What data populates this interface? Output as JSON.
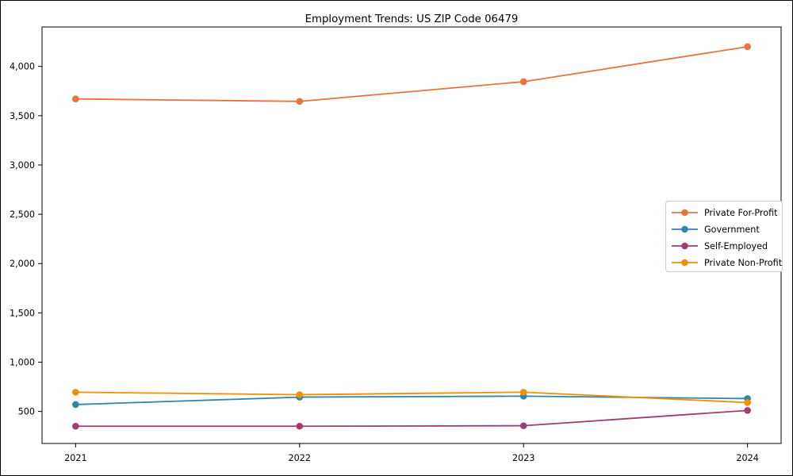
{
  "figure": {
    "title": "Employment Trends: US ZIP Code 06479"
  },
  "chart_data": {
    "type": "line",
    "title": "Employment Trends: US ZIP Code 06479",
    "xlabel": "",
    "ylabel": "",
    "x": [
      2021,
      2022,
      2023,
      2024
    ],
    "x_tick_labels": [
      "2021",
      "2022",
      "2023",
      "2024"
    ],
    "series": [
      {
        "name": "Private For-Profit",
        "color": "#E8743B",
        "values": [
          3670,
          3645,
          3845,
          4200
        ]
      },
      {
        "name": "Government",
        "color": "#2E86AB",
        "values": [
          570,
          645,
          655,
          630
        ]
      },
      {
        "name": "Self-Employed",
        "color": "#A23B72",
        "values": [
          350,
          350,
          355,
          510
        ]
      },
      {
        "name": "Private Non-Profit",
        "color": "#F18F01",
        "values": [
          695,
          670,
          695,
          590
        ]
      }
    ],
    "yticks": [
      500,
      1000,
      1500,
      2000,
      2500,
      3000,
      3500,
      4000
    ],
    "ytick_labels": [
      "500",
      "1,000",
      "1,500",
      "2,000",
      "2,500",
      "3,000",
      "3,500",
      "4,000"
    ],
    "ylim": [
      175,
      4400
    ],
    "xlim": [
      2020.85,
      2024.15
    ],
    "grid": false,
    "legend": {
      "position": "right",
      "labels": [
        "Private For-Profit",
        "Government",
        "Self-Employed",
        "Private Non-Profit"
      ]
    },
    "marker": "circle",
    "line_width": 1.8,
    "marker_radius": 4.3
  }
}
